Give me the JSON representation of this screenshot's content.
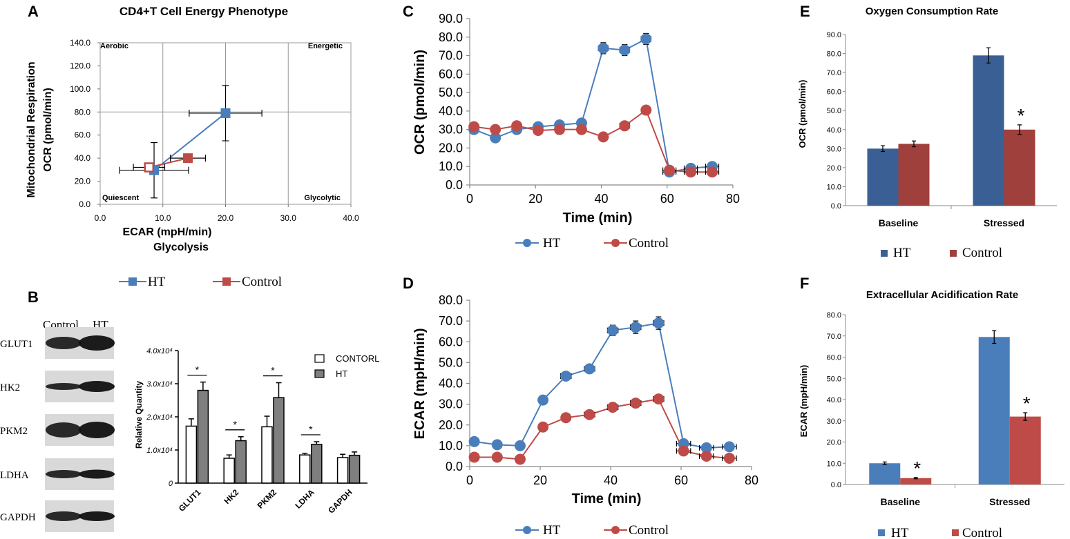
{
  "colors": {
    "ht": "#4a7ebb",
    "ht_dark": "#3a5f95",
    "control": "#be4b48",
    "bar_white": "#ffffff",
    "bar_gray": "#7f7f7f"
  },
  "panel_labels": {
    "a": "A",
    "b": "B",
    "c": "C",
    "d": "D",
    "e": "E",
    "f": "F"
  },
  "legend_main": {
    "ht": "HT",
    "control": "Control"
  },
  "blot": {
    "lane_labels": [
      "Control",
      "HT"
    ],
    "rows": [
      "GLUT1",
      "HK2",
      "PKM2",
      "LDHA",
      "GAPDH"
    ]
  },
  "quadrants": {
    "aerobic": "Aerobic",
    "energetic": "Energetic",
    "quiescent": "Quiescent",
    "glycolytic": "Glycolytic"
  },
  "y_label_a2": "Mitochondrial Respiration",
  "x_label_a2": "Glycolysis",
  "chart_data": [
    {
      "id": "A",
      "type": "scatter",
      "title": "CD4+T Cell Energy Phenotype",
      "xlabel": "ECAR (mpH/min)",
      "ylabel": "OCR (pmol/min)",
      "xlim": [
        0,
        40
      ],
      "ylim": [
        0,
        140
      ],
      "x_ticks": [
        "0.0",
        "10.0",
        "20.0",
        "30.0",
        "40.0"
      ],
      "y_ticks": [
        "0.0",
        "20.0",
        "40.0",
        "60.0",
        "80.0",
        "100.0",
        "120.0",
        "140.0"
      ],
      "series": [
        {
          "name": "HT",
          "points": [
            {
              "x": 8.6,
              "y": 29.5,
              "xerr": 5.5,
              "yerr": 24,
              "hollow": false
            },
            {
              "x": 20,
              "y": 79,
              "xerr": 5.8,
              "yerr": 24,
              "hollow": false
            }
          ]
        },
        {
          "name": "Control",
          "points": [
            {
              "x": 7.8,
              "y": 32,
              "xerr": 2.5,
              "yerr": 2,
              "hollow": true
            },
            {
              "x": 14,
              "y": 40,
              "xerr": 2.8,
              "yerr": 2,
              "hollow": false
            }
          ]
        }
      ]
    },
    {
      "id": "B",
      "type": "bar",
      "title": "",
      "ylabel": "Relative Quantity",
      "categories": [
        "GLUT1",
        "HK2",
        "PKM2",
        "LDHA",
        "GAPDH"
      ],
      "ylim": [
        0,
        4
      ],
      "y_ticks": [
        "0",
        "1.0x10⁴",
        "2.0x10⁴",
        "3.0x10⁴",
        "4.0x10⁴"
      ],
      "legend": [
        "CONTORL",
        "HT"
      ],
      "series": [
        {
          "name": "CONTORL",
          "values": [
            1.72,
            0.75,
            1.7,
            0.85,
            0.77
          ],
          "errors": [
            0.22,
            0.1,
            0.32,
            0.05,
            0.1
          ]
        },
        {
          "name": "HT",
          "values": [
            2.8,
            1.28,
            2.58,
            1.17,
            0.84
          ],
          "errors": [
            0.25,
            0.12,
            0.45,
            0.08,
            0.1
          ]
        }
      ],
      "significance": [
        "*",
        "*",
        "*",
        "*",
        ""
      ]
    },
    {
      "id": "C",
      "type": "line",
      "title": "",
      "xlabel": "Time (min)",
      "ylabel": "OCR (pmol/min)",
      "xlim": [
        0,
        80
      ],
      "ylim": [
        0,
        90
      ],
      "x_ticks": [
        "0",
        "20",
        "40",
        "60",
        "80"
      ],
      "y_ticks": [
        "0.0",
        "10.0",
        "20.0",
        "30.0",
        "40.0",
        "50.0",
        "60.0",
        "70.0",
        "80.0",
        "90.0"
      ],
      "series": [
        {
          "name": "HT",
          "x": [
            1.3,
            7.8,
            14.3,
            20.8,
            27.3,
            34,
            40.6,
            47.1,
            53.6,
            60.7,
            67.2,
            73.7
          ],
          "y": [
            30,
            25.5,
            30,
            31.5,
            32.5,
            33.5,
            74,
            73,
            79,
            7,
            9,
            10
          ],
          "xerr": [
            0,
            0,
            0,
            0,
            0,
            0,
            1.5,
            1.5,
            1.5,
            2,
            2,
            2
          ],
          "yerr": [
            0,
            0,
            0,
            0,
            0,
            0,
            3,
            3,
            3,
            1,
            1,
            1
          ]
        },
        {
          "name": "Control",
          "x": [
            1.3,
            7.8,
            14.3,
            20.8,
            27.3,
            34,
            40.6,
            47.1,
            53.6,
            60.7,
            67.2,
            73.7
          ],
          "y": [
            31.5,
            30,
            32,
            29.5,
            30,
            30,
            26,
            32,
            40.5,
            8,
            7,
            7
          ],
          "xerr": [
            0,
            0,
            0,
            0,
            0,
            0,
            0,
            1.5,
            0,
            2,
            2,
            2
          ],
          "yerr": [
            0,
            0,
            0,
            0,
            0,
            0,
            0,
            0,
            0,
            0,
            0,
            0
          ]
        }
      ]
    },
    {
      "id": "D",
      "type": "line",
      "title": "",
      "xlabel": "Time (min)",
      "ylabel": "ECAR (mpH/min)",
      "xlim": [
        0,
        80
      ],
      "ylim": [
        0,
        80
      ],
      "x_ticks": [
        "0",
        "20",
        "40",
        "60",
        "80"
      ],
      "y_ticks": [
        "0.0",
        "10.0",
        "20.0",
        "30.0",
        "40.0",
        "50.0",
        "60.0",
        "70.0",
        "80.0"
      ],
      "series": [
        {
          "name": "HT",
          "x": [
            1.3,
            7.8,
            14.3,
            20.8,
            27.3,
            34,
            40.6,
            47.1,
            53.6,
            60.7,
            67.2,
            73.7
          ],
          "y": [
            12,
            10.5,
            10,
            32,
            43.5,
            47,
            65.5,
            67,
            69,
            11,
            9,
            9.5
          ],
          "xerr": [
            0,
            0,
            0,
            0,
            1.5,
            1.5,
            1.5,
            1.5,
            1.5,
            2,
            2,
            2
          ],
          "yerr": [
            0,
            0,
            0,
            0,
            1.5,
            1.5,
            2.5,
            3,
            3,
            1,
            1,
            1
          ]
        },
        {
          "name": "Control",
          "x": [
            1.3,
            7.8,
            14.3,
            20.8,
            27.3,
            34,
            40.6,
            47.1,
            53.6,
            60.7,
            67.2,
            73.7
          ],
          "y": [
            4.5,
            4.5,
            3.5,
            19,
            23.5,
            25,
            28.5,
            30.5,
            32.5,
            7.5,
            5,
            4
          ],
          "xerr": [
            0,
            0,
            0,
            0,
            0,
            1.5,
            1.5,
            1.5,
            1.5,
            2,
            2,
            2
          ],
          "yerr": [
            0,
            0,
            0,
            0,
            0,
            0,
            0,
            0,
            0,
            0,
            0,
            0
          ]
        }
      ]
    },
    {
      "id": "E",
      "type": "bar",
      "title": "Oxygen Consumption Rate",
      "ylabel": "OCR (pmol/min)",
      "categories": [
        "Baseline",
        "Stressed"
      ],
      "ylim": [
        0,
        90
      ],
      "y_ticks": [
        "0.0",
        "10.0",
        "20.0",
        "30.0",
        "40.0",
        "50.0",
        "60.0",
        "70.0",
        "80.0",
        "90.0"
      ],
      "series": [
        {
          "name": "HT",
          "values": [
            30,
            79
          ],
          "errors": [
            1.5,
            4
          ]
        },
        {
          "name": "Control",
          "values": [
            32.5,
            40
          ],
          "errors": [
            1.5,
            2.5
          ]
        }
      ],
      "significance": [
        [],
        [
          1
        ]
      ]
    },
    {
      "id": "F",
      "type": "bar",
      "title": "Extracellular Acidification Rate",
      "ylabel": "ECAR (mpH/min)",
      "categories": [
        "Baseline",
        "Stressed"
      ],
      "ylim": [
        0,
        80
      ],
      "y_ticks": [
        "0.0",
        "10.0",
        "20.0",
        "30.0",
        "40.0",
        "50.0",
        "60.0",
        "70.0",
        "80.0"
      ],
      "series": [
        {
          "name": "HT",
          "values": [
            10,
            69.5
          ],
          "errors": [
            0.6,
            3
          ]
        },
        {
          "name": "Control",
          "values": [
            3,
            32
          ],
          "errors": [
            0.3,
            1.8
          ]
        }
      ],
      "significance": [
        [
          1
        ],
        [
          1
        ]
      ]
    }
  ]
}
